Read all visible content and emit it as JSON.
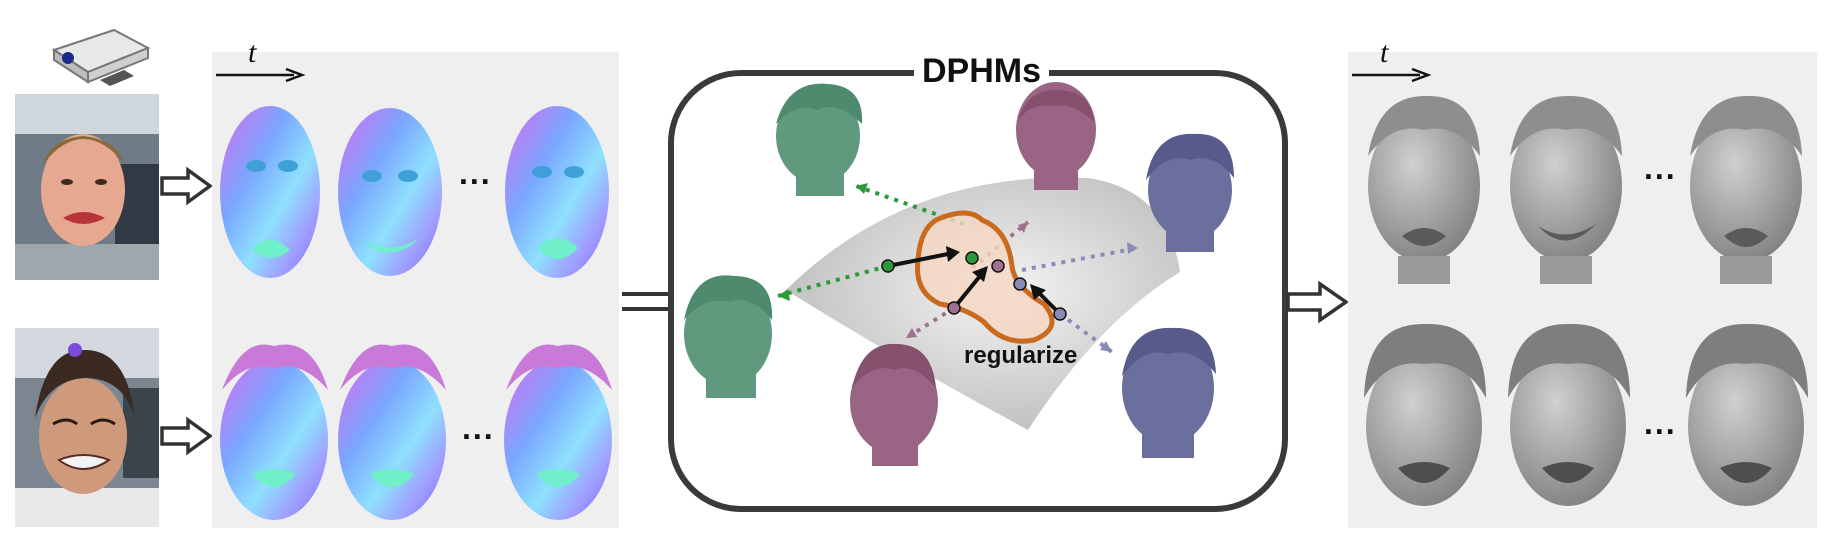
{
  "time_symbol_left": "t",
  "time_symbol_right": "t",
  "center_title": "DPHMs",
  "regularize_label": "regularize",
  "ellipsis": "...",
  "colors": {
    "green_head": "#5f9a7e",
    "mauve_head": "#9a6585",
    "slate_head": "#6b6f9e",
    "gray_head": "#9a9a9a",
    "orange_blob": "#c96a1f",
    "panel_bg": "#efefef"
  },
  "icons": [
    "depth-camera-icon",
    "hollow-arrow-icon"
  ]
}
